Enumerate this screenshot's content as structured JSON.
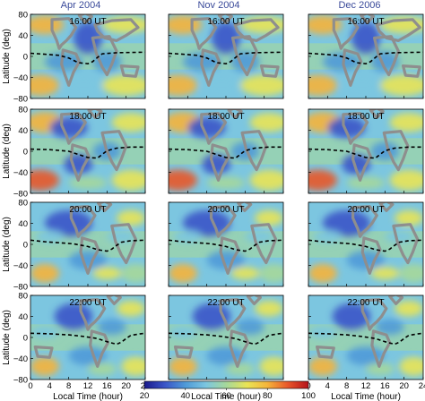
{
  "chart_data": {
    "type": "heatmap",
    "columns": [
      "Apr 2004",
      "Nov 2004",
      "Dec 2006"
    ],
    "rows": [
      "16:00 UT",
      "18:00 UT",
      "20:00 UT",
      "22:00 UT"
    ],
    "xlabel": "Local Time (hour)",
    "ylabel": "Latitude (deg)",
    "xlim": [
      0,
      24
    ],
    "ylim": [
      -80,
      80
    ],
    "x_ticks": [
      "0",
      "4",
      "8",
      "12",
      "16",
      "20",
      "24"
    ],
    "y_ticks": [
      "80",
      "40",
      "0",
      "−40",
      "−80"
    ],
    "colorbar": {
      "range": [
        20,
        100
      ],
      "ticks": [
        "20",
        "40",
        "60",
        "80",
        "100"
      ]
    },
    "panels": [
      {
        "column": "Apr 2004",
        "row": "16:00 UT",
        "equator": [
          [
            0,
            6
          ],
          [
            3,
            4
          ],
          [
            6,
            2
          ],
          [
            8,
            -3
          ],
          [
            10,
            -12
          ],
          [
            12,
            -14
          ],
          [
            13,
            -10
          ],
          [
            14,
            -2
          ],
          [
            15,
            5
          ],
          [
            18,
            7
          ],
          [
            24,
            8
          ]
        ]
      },
      {
        "column": "Nov 2004",
        "row": "16:00 UT",
        "equator": [
          [
            0,
            6
          ],
          [
            3,
            4
          ],
          [
            6,
            2
          ],
          [
            8,
            -3
          ],
          [
            10,
            -12
          ],
          [
            12,
            -14
          ],
          [
            13,
            -10
          ],
          [
            14,
            -2
          ],
          [
            15,
            5
          ],
          [
            18,
            7
          ],
          [
            24,
            8
          ]
        ]
      },
      {
        "column": "Dec 2006",
        "row": "16:00 UT",
        "equator": [
          [
            0,
            6
          ],
          [
            3,
            4
          ],
          [
            6,
            2
          ],
          [
            8,
            -3
          ],
          [
            10,
            -12
          ],
          [
            12,
            -14
          ],
          [
            13,
            -10
          ],
          [
            14,
            -2
          ],
          [
            15,
            5
          ],
          [
            18,
            7
          ],
          [
            24,
            8
          ]
        ]
      },
      {
        "column": "Apr 2004",
        "row": "18:00 UT",
        "equator": [
          [
            0,
            4
          ],
          [
            4,
            3
          ],
          [
            8,
            0
          ],
          [
            10,
            -6
          ],
          [
            12,
            -12
          ],
          [
            14,
            -13
          ],
          [
            15,
            -6
          ],
          [
            16,
            1
          ],
          [
            18,
            6
          ],
          [
            21,
            8
          ],
          [
            24,
            8
          ]
        ]
      },
      {
        "column": "Nov 2004",
        "row": "18:00 UT",
        "equator": [
          [
            0,
            4
          ],
          [
            4,
            3
          ],
          [
            8,
            0
          ],
          [
            10,
            -6
          ],
          [
            12,
            -12
          ],
          [
            14,
            -13
          ],
          [
            15,
            -6
          ],
          [
            16,
            1
          ],
          [
            18,
            6
          ],
          [
            21,
            8
          ],
          [
            24,
            8
          ]
        ]
      },
      {
        "column": "Dec 2006",
        "row": "18:00 UT",
        "equator": [
          [
            0,
            4
          ],
          [
            4,
            3
          ],
          [
            8,
            0
          ],
          [
            10,
            -6
          ],
          [
            12,
            -12
          ],
          [
            14,
            -13
          ],
          [
            15,
            -6
          ],
          [
            16,
            1
          ],
          [
            18,
            6
          ],
          [
            21,
            8
          ],
          [
            24,
            8
          ]
        ]
      },
      {
        "column": "Apr 2004",
        "row": "20:00 UT",
        "equator": [
          [
            0,
            8
          ],
          [
            3,
            5
          ],
          [
            6,
            3
          ],
          [
            9,
            1
          ],
          [
            12,
            -4
          ],
          [
            14,
            -10
          ],
          [
            16,
            -13
          ],
          [
            17,
            -9
          ],
          [
            18,
            -2
          ],
          [
            19,
            4
          ],
          [
            21,
            7
          ],
          [
            24,
            8
          ]
        ]
      },
      {
        "column": "Nov 2004",
        "row": "20:00 UT",
        "equator": [
          [
            0,
            8
          ],
          [
            3,
            5
          ],
          [
            6,
            3
          ],
          [
            9,
            1
          ],
          [
            12,
            -4
          ],
          [
            14,
            -10
          ],
          [
            16,
            -13
          ],
          [
            17,
            -9
          ],
          [
            18,
            -2
          ],
          [
            19,
            4
          ],
          [
            21,
            7
          ],
          [
            24,
            8
          ]
        ]
      },
      {
        "column": "Dec 2006",
        "row": "20:00 UT",
        "equator": [
          [
            0,
            8
          ],
          [
            3,
            5
          ],
          [
            6,
            3
          ],
          [
            9,
            1
          ],
          [
            12,
            -4
          ],
          [
            14,
            -10
          ],
          [
            16,
            -13
          ],
          [
            17,
            -9
          ],
          [
            18,
            -2
          ],
          [
            19,
            4
          ],
          [
            21,
            7
          ],
          [
            24,
            8
          ]
        ]
      },
      {
        "column": "Apr 2004",
        "row": "22:00 UT",
        "equator": [
          [
            0,
            8
          ],
          [
            4,
            7
          ],
          [
            8,
            5
          ],
          [
            11,
            2
          ],
          [
            14,
            -2
          ],
          [
            16,
            -8
          ],
          [
            18,
            -13
          ],
          [
            19,
            -9
          ],
          [
            20,
            -2
          ],
          [
            21,
            4
          ],
          [
            23,
            7
          ],
          [
            24,
            8
          ]
        ]
      },
      {
        "column": "Nov 2004",
        "row": "22:00 UT",
        "equator": [
          [
            0,
            8
          ],
          [
            4,
            7
          ],
          [
            8,
            5
          ],
          [
            11,
            2
          ],
          [
            14,
            -2
          ],
          [
            16,
            -8
          ],
          [
            18,
            -13
          ],
          [
            19,
            -9
          ],
          [
            20,
            -2
          ],
          [
            21,
            4
          ],
          [
            23,
            7
          ],
          [
            24,
            8
          ]
        ]
      },
      {
        "column": "Dec 2006",
        "row": "22:00 UT",
        "equator": [
          [
            0,
            8
          ],
          [
            4,
            7
          ],
          [
            8,
            5
          ],
          [
            11,
            2
          ],
          [
            14,
            -2
          ],
          [
            16,
            -8
          ],
          [
            18,
            -13
          ],
          [
            19,
            -9
          ],
          [
            20,
            -2
          ],
          [
            21,
            4
          ],
          [
            23,
            7
          ],
          [
            24,
            8
          ]
        ]
      }
    ],
    "colors": {
      "title": "#3a4a9a",
      "land": "#8e8e8e",
      "equator": "#000000",
      "scale": [
        "#1a1a8c",
        "#3a55c8",
        "#4f9ad8",
        "#7cc6e0",
        "#a6d89a",
        "#e9e455",
        "#f5b43a",
        "#e8562a",
        "#b5121b"
      ]
    }
  }
}
